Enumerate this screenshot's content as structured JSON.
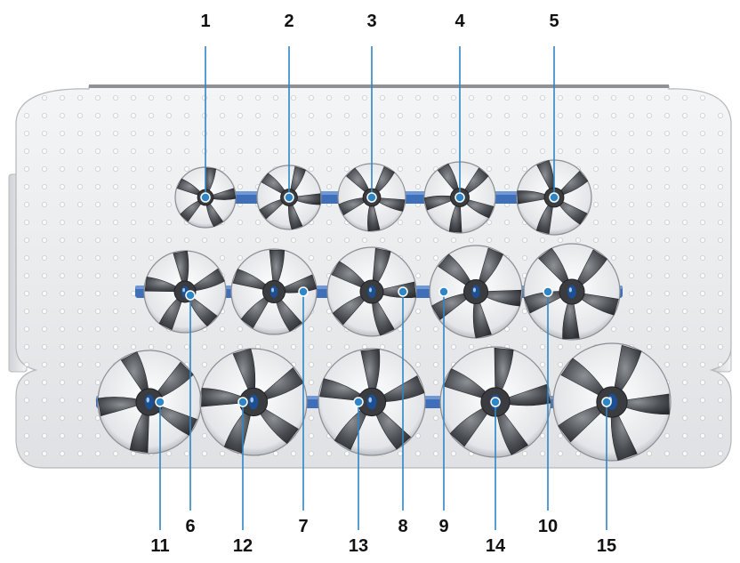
{
  "callouts": [
    {
      "id": "1",
      "label": "1"
    },
    {
      "id": "2",
      "label": "2"
    },
    {
      "id": "3",
      "label": "3"
    },
    {
      "id": "4",
      "label": "4"
    },
    {
      "id": "5",
      "label": "5"
    },
    {
      "id": "6",
      "label": "6"
    },
    {
      "id": "7",
      "label": "7"
    },
    {
      "id": "8",
      "label": "8"
    },
    {
      "id": "9",
      "label": "9"
    },
    {
      "id": "10",
      "label": "10"
    },
    {
      "id": "11",
      "label": "11"
    },
    {
      "id": "12",
      "label": "12"
    },
    {
      "id": "13",
      "label": "13"
    },
    {
      "id": "14",
      "label": "14"
    },
    {
      "id": "15",
      "label": "15"
    }
  ],
  "colors": {
    "tray": "#e9ebed",
    "tray_edge": "#b9bcc0",
    "rail": "#3f6fb8",
    "callout_line": "#2f86c6",
    "label": "#111111",
    "cutter_dark": "#3b3d40",
    "cutter_light": "#c9cbce"
  }
}
